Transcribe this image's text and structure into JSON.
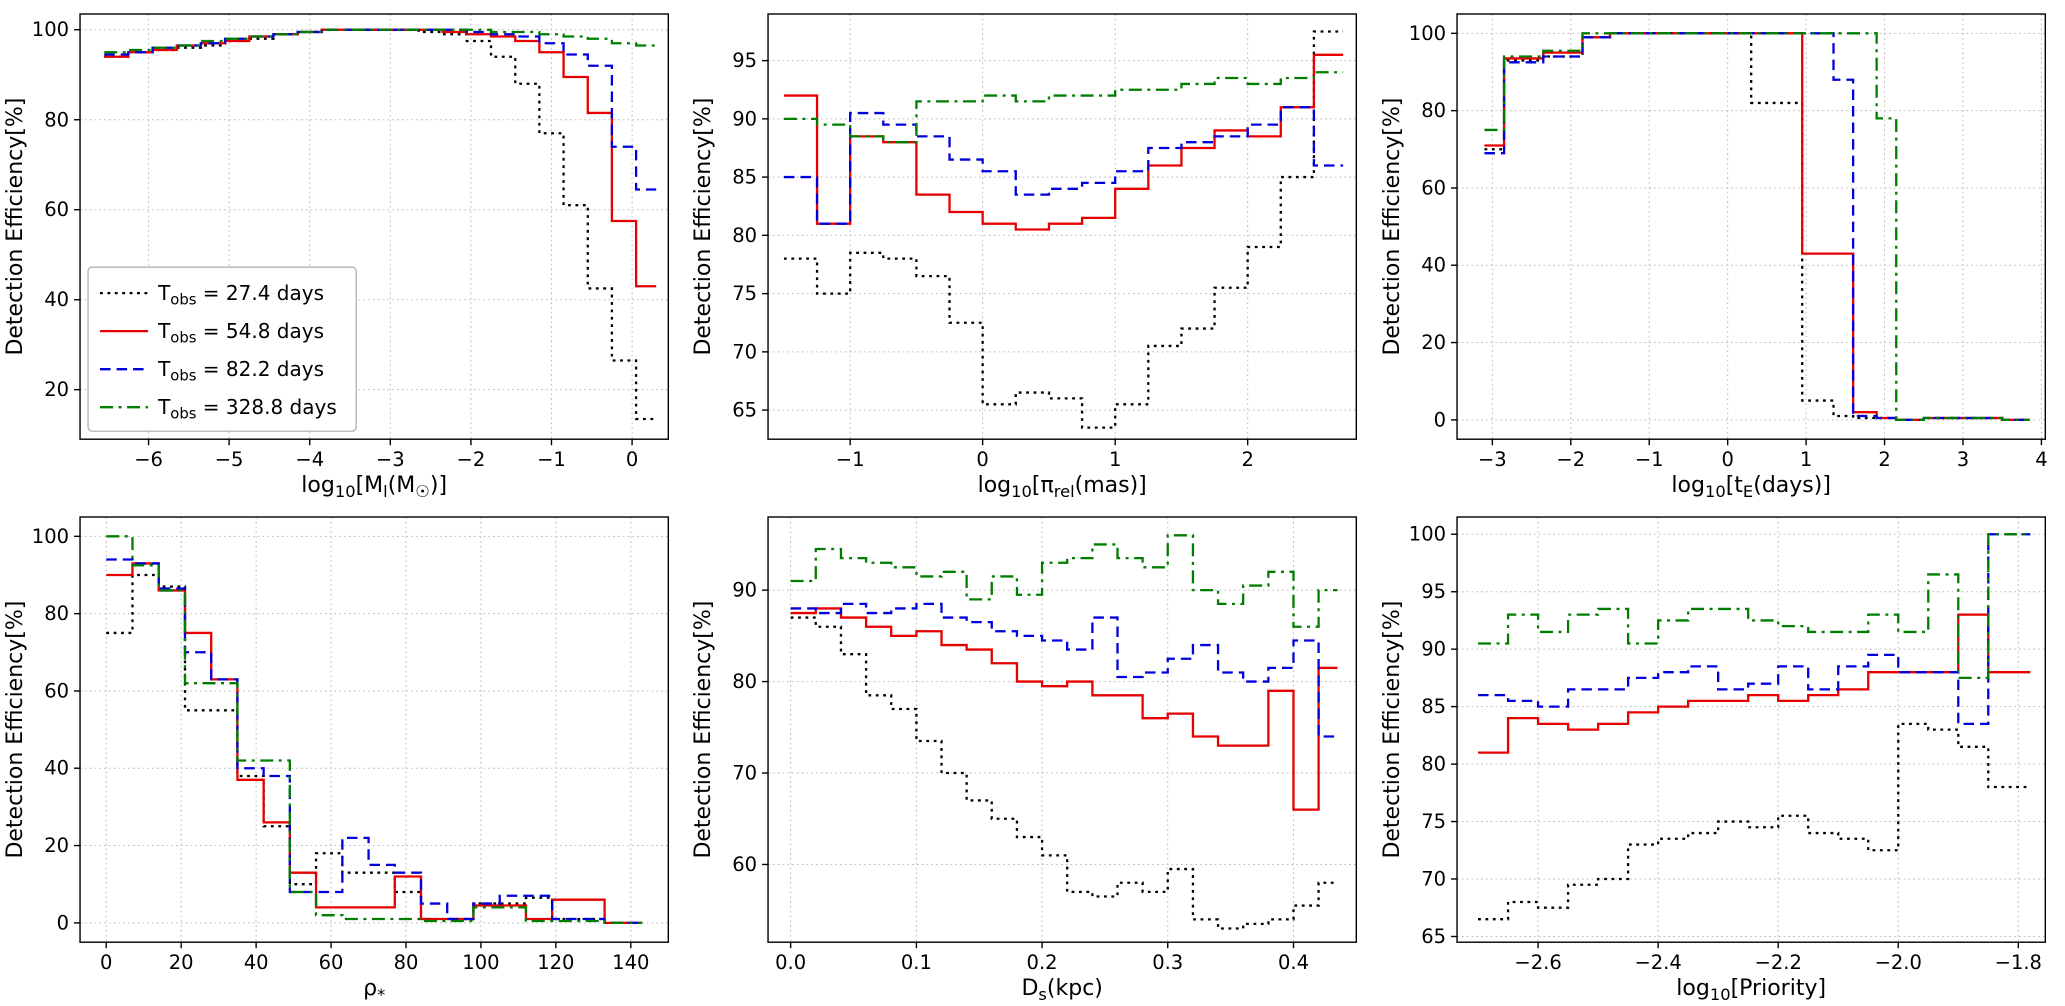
{
  "figure": {
    "background": "#ffffff",
    "ylabel": "Detection Efficiency[%]"
  },
  "legend": {
    "position": "lower-left-of-first-subplot",
    "entries": [
      {
        "label": "T_{obs} = 27.4 days",
        "style": "dotted",
        "color": "#000000"
      },
      {
        "label": "T_{obs} = 54.8 days",
        "style": "solid",
        "color": "#e60000"
      },
      {
        "label": "T_{obs} = 82.2 days",
        "style": "dashed",
        "color": "#0000dd"
      },
      {
        "label": "T_{obs} = 328.8 days",
        "style": "dashdot",
        "color": "#007d00"
      }
    ]
  },
  "chart_data": [
    {
      "type": "line",
      "step": true,
      "grid": true,
      "legend": true,
      "xlabel": "log_{10}[M_{l}(M_{☉})]",
      "ylabel": "Detection Efficiency[%]",
      "xlim": [
        -6.85,
        0.45
      ],
      "ylim": [
        9,
        103.5
      ],
      "xticks": [
        -6,
        -5,
        -4,
        -3,
        -2,
        -1,
        0
      ],
      "xtick_labels": [
        "−6",
        "−5",
        "−4",
        "−3",
        "−2",
        "−1",
        "0"
      ],
      "yticks": [
        20,
        40,
        60,
        80,
        100
      ],
      "ytick_labels": [
        "20",
        "40",
        "60",
        "80",
        "100"
      ],
      "x": [
        -6.55,
        -6.25,
        -5.95,
        -5.65,
        -5.35,
        -5.05,
        -4.75,
        -4.45,
        -4.15,
        -3.85,
        -3.55,
        -3.25,
        -2.95,
        -2.65,
        -2.35,
        -2.05,
        -1.75,
        -1.45,
        -1.15,
        -0.85,
        -0.55,
        -0.25,
        0.05
      ],
      "x_end": 0.3,
      "series": [
        {
          "name": "27.4 days",
          "y": [
            94,
            95,
            95.5,
            96,
            96.5,
            97.5,
            98,
            99,
            99.5,
            100,
            100,
            100,
            100,
            99.5,
            99,
            97.5,
            94,
            88,
            77,
            61,
            42.5,
            26.5,
            13.5
          ]
        },
        {
          "name": "54.8 days",
          "y": [
            94,
            95,
            95.5,
            96.5,
            97,
            97.5,
            98.5,
            99,
            99.5,
            100,
            100,
            100,
            100,
            100,
            99.5,
            99,
            98.5,
            97.5,
            95,
            89.5,
            81.5,
            57.5,
            43
          ]
        },
        {
          "name": "82.2 days",
          "y": [
            94.5,
            95,
            96,
            96.5,
            97,
            98,
            98.5,
            99,
            99.5,
            100,
            100,
            100,
            100,
            100,
            100,
            99.5,
            99,
            98.5,
            97,
            94.5,
            92,
            74,
            64.5
          ]
        },
        {
          "name": "328.8 days",
          "y": [
            95,
            95.5,
            96,
            96.5,
            97.5,
            98,
            98.5,
            99,
            99.5,
            100,
            100,
            100,
            100,
            100,
            100,
            100,
            99.5,
            99.5,
            99,
            98.5,
            98,
            97,
            96.5
          ]
        }
      ]
    },
    {
      "type": "line",
      "step": true,
      "grid": true,
      "legend": false,
      "xlabel": "log_{10}[π_{rel}(mas)]",
      "ylabel": "Detection Efficiency[%]",
      "xlim": [
        -1.62,
        2.82
      ],
      "ylim": [
        62.5,
        99
      ],
      "xticks": [
        -1,
        0,
        1,
        2
      ],
      "xtick_labels": [
        "−1",
        "0",
        "1",
        "2"
      ],
      "yticks": [
        65,
        70,
        75,
        80,
        85,
        90,
        95
      ],
      "ytick_labels": [
        "65",
        "70",
        "75",
        "80",
        "85",
        "90",
        "95"
      ],
      "x": [
        -1.5,
        -1.25,
        -1.0,
        -0.75,
        -0.5,
        -0.25,
        0.0,
        0.25,
        0.5,
        0.75,
        1.0,
        1.25,
        1.5,
        1.75,
        2.0,
        2.25,
        2.5
      ],
      "x_end": 2.72,
      "series": [
        {
          "name": "27.4 days",
          "y": [
            78,
            75,
            78.5,
            78,
            76.5,
            72.5,
            65.5,
            66.5,
            66,
            63.5,
            65.5,
            70.5,
            72,
            75.5,
            79,
            85,
            97.5
          ]
        },
        {
          "name": "54.8 days",
          "y": [
            92,
            81,
            88.5,
            88,
            83.5,
            82,
            81,
            80.5,
            81,
            81.5,
            84,
            86,
            87.5,
            89,
            88.5,
            91,
            95.5
          ]
        },
        {
          "name": "82.2 days",
          "y": [
            85,
            81,
            90.5,
            89.5,
            88.5,
            86.5,
            85.5,
            83.5,
            84,
            84.5,
            85.5,
            87.5,
            88,
            88.5,
            89.5,
            91,
            86
          ]
        },
        {
          "name": "328.8 days",
          "y": [
            90,
            89.5,
            88.5,
            88,
            91.5,
            91.5,
            92,
            91.5,
            92,
            92,
            92.5,
            92.5,
            93,
            93.5,
            93,
            93.5,
            94
          ]
        }
      ]
    },
    {
      "type": "line",
      "step": true,
      "grid": true,
      "legend": false,
      "xlabel": "log_{10}[t_{E}(days)]",
      "ylabel": "Detection Efficiency[%]",
      "xlim": [
        -3.45,
        4.05
      ],
      "ylim": [
        -5,
        105
      ],
      "xticks": [
        -3,
        -2,
        -1,
        0,
        1,
        2,
        3,
        4
      ],
      "xtick_labels": [
        "−3",
        "−2",
        "−1",
        "0",
        "1",
        "2",
        "3",
        "4"
      ],
      "yticks": [
        0,
        20,
        40,
        60,
        80,
        100
      ],
      "ytick_labels": [
        "0",
        "20",
        "40",
        "60",
        "80",
        "100"
      ],
      "x": [
        -3.1,
        -2.85,
        -2.35,
        -1.85,
        -1.5,
        -0.5,
        0.3,
        0.95,
        1.35,
        1.6,
        1.9,
        2.15,
        2.5,
        3.0,
        3.5
      ],
      "x_end": 3.85,
      "series": [
        {
          "name": "27.4 days",
          "y": [
            70,
            93,
            94,
            99,
            100,
            100,
            82,
            5,
            1,
            0.5,
            0.5,
            0,
            0.5,
            0.5,
            0
          ]
        },
        {
          "name": "54.8 days",
          "y": [
            71,
            93.5,
            95,
            99,
            100,
            100,
            100,
            43,
            43,
            2,
            0.5,
            0,
            0.5,
            0.5,
            0
          ]
        },
        {
          "name": "82.2 days",
          "y": [
            69,
            92.5,
            94,
            99,
            100,
            100,
            100,
            100,
            88,
            1,
            0.5,
            0,
            0.5,
            0.5,
            0
          ]
        },
        {
          "name": "328.8 days",
          "y": [
            75,
            94,
            95.5,
            100,
            100,
            100,
            100,
            100,
            100,
            100,
            78,
            0,
            0.5,
            0.5,
            0
          ]
        }
      ]
    },
    {
      "type": "line",
      "step": true,
      "grid": true,
      "legend": false,
      "xlabel": "ρ_{*}",
      "ylabel": "Detection Efficiency[%]",
      "xlim": [
        -7,
        150
      ],
      "ylim": [
        -5,
        105
      ],
      "xticks": [
        0,
        20,
        40,
        60,
        80,
        100,
        120,
        140
      ],
      "xtick_labels": [
        "0",
        "20",
        "40",
        "60",
        "80",
        "100",
        "120",
        "140"
      ],
      "yticks": [
        0,
        20,
        40,
        60,
        80,
        100
      ],
      "ytick_labels": [
        "0",
        "20",
        "40",
        "60",
        "80",
        "100"
      ],
      "x": [
        0,
        7,
        14,
        21,
        28,
        35,
        42,
        49,
        56,
        63,
        70,
        77,
        84,
        91,
        98,
        105,
        112,
        119,
        126,
        133
      ],
      "x_end": 143,
      "series": [
        {
          "name": "27.4 days",
          "y": [
            75,
            90,
            87,
            55,
            55,
            38,
            25,
            10,
            18,
            13,
            13,
            8,
            1,
            1,
            5,
            5,
            6.5,
            1,
            1,
            0
          ]
        },
        {
          "name": "54.8 days",
          "y": [
            90,
            93,
            86,
            75,
            63,
            37,
            26,
            13,
            4,
            4,
            4,
            12,
            1,
            1,
            4.5,
            4.5,
            1,
            6,
            6,
            0
          ]
        },
        {
          "name": "82.2 days",
          "y": [
            94,
            93,
            86.5,
            70,
            63,
            40,
            38,
            8,
            8,
            22,
            15,
            13,
            5,
            1,
            5,
            7,
            7,
            1,
            1,
            0
          ]
        },
        {
          "name": "328.8 days",
          "y": [
            100,
            92.5,
            86,
            62,
            62,
            42,
            42,
            8,
            2,
            1,
            1,
            1,
            0.5,
            0.5,
            4,
            4,
            0.5,
            0.5,
            0.5,
            0
          ]
        }
      ]
    },
    {
      "type": "line",
      "step": true,
      "grid": true,
      "legend": false,
      "xlabel": "D_{s}(kpc)",
      "ylabel": "Detection Efficiency[%]",
      "xlim": [
        -0.018,
        0.45
      ],
      "ylim": [
        51.5,
        98
      ],
      "xticks": [
        0.0,
        0.1,
        0.2,
        0.3,
        0.4
      ],
      "xtick_labels": [
        "0.0",
        "0.1",
        "0.2",
        "0.3",
        "0.4"
      ],
      "yticks": [
        60,
        70,
        80,
        90
      ],
      "ytick_labels": [
        "60",
        "70",
        "80",
        "90"
      ],
      "x": [
        0.0,
        0.02,
        0.04,
        0.06,
        0.08,
        0.1,
        0.12,
        0.14,
        0.16,
        0.18,
        0.2,
        0.22,
        0.24,
        0.26,
        0.28,
        0.3,
        0.32,
        0.34,
        0.36,
        0.38,
        0.4,
        0.42
      ],
      "x_end": 0.435,
      "series": [
        {
          "name": "27.4 days",
          "y": [
            87,
            86,
            83,
            78.5,
            77,
            73.5,
            70,
            67,
            65,
            63,
            61,
            57,
            56.5,
            58,
            57,
            59.5,
            54,
            53,
            53.5,
            54,
            55.5,
            58
          ]
        },
        {
          "name": "54.8 days",
          "y": [
            87.5,
            88,
            87,
            86,
            85,
            85.5,
            84,
            83.5,
            82,
            80,
            79.5,
            80,
            78.5,
            78.5,
            76,
            76.5,
            74,
            73,
            73,
            79,
            66,
            81.5
          ]
        },
        {
          "name": "82.2 days",
          "y": [
            88,
            87.5,
            88.5,
            87.5,
            88,
            88.5,
            87,
            86.5,
            85.5,
            85,
            84.5,
            83.5,
            87,
            80.5,
            81,
            82.5,
            84,
            81,
            80,
            81.5,
            84.5,
            74
          ]
        },
        {
          "name": "328.8 days",
          "y": [
            91,
            94.5,
            93.5,
            93,
            92.5,
            91.5,
            92,
            89,
            91.5,
            89.5,
            93,
            93.5,
            95,
            93.5,
            92.5,
            96,
            90,
            88.5,
            90.5,
            92,
            86,
            90
          ]
        }
      ]
    },
    {
      "type": "line",
      "step": true,
      "grid": true,
      "legend": false,
      "xlabel": "log_{10}[Priority]",
      "ylabel": "Detection Efficiency[%]",
      "xlim": [
        -2.735,
        -1.755
      ],
      "ylim": [
        64.5,
        101.5
      ],
      "xticks": [
        -2.6,
        -2.4,
        -2.2,
        -2.0,
        -1.8
      ],
      "xtick_labels": [
        "−2.6",
        "−2.4",
        "−2.2",
        "−2.0",
        "−1.8"
      ],
      "yticks": [
        65,
        70,
        75,
        80,
        85,
        90,
        95,
        100
      ],
      "ytick_labels": [
        "65",
        "70",
        "75",
        "80",
        "85",
        "90",
        "95",
        "100"
      ],
      "x": [
        -2.7,
        -2.65,
        -2.6,
        -2.55,
        -2.5,
        -2.45,
        -2.4,
        -2.35,
        -2.3,
        -2.25,
        -2.2,
        -2.15,
        -2.1,
        -2.05,
        -2.0,
        -1.95,
        -1.9,
        -1.85
      ],
      "x_end": -1.78,
      "series": [
        {
          "name": "27.4 days",
          "y": [
            66.5,
            68,
            67.5,
            69.5,
            70,
            73,
            73.5,
            74,
            75,
            74.5,
            75.5,
            74,
            73.5,
            72.5,
            83.5,
            83,
            81.5,
            78
          ]
        },
        {
          "name": "54.8 days",
          "y": [
            81,
            84,
            83.5,
            83,
            83.5,
            84.5,
            85,
            85.5,
            85.5,
            86,
            85.5,
            86,
            86.5,
            88,
            88,
            88,
            93,
            88
          ]
        },
        {
          "name": "82.2 days",
          "y": [
            86,
            85.5,
            85,
            86.5,
            86.5,
            87.5,
            88,
            88.5,
            86.5,
            87,
            88.5,
            86.5,
            88.5,
            89.5,
            88,
            88,
            83.5,
            100
          ]
        },
        {
          "name": "328.8 days",
          "y": [
            90.5,
            93,
            91.5,
            93,
            93.5,
            90.5,
            92.5,
            93.5,
            93.5,
            92.5,
            92,
            91.5,
            91.5,
            93,
            91.5,
            96.5,
            87.5,
            100
          ]
        }
      ]
    }
  ]
}
